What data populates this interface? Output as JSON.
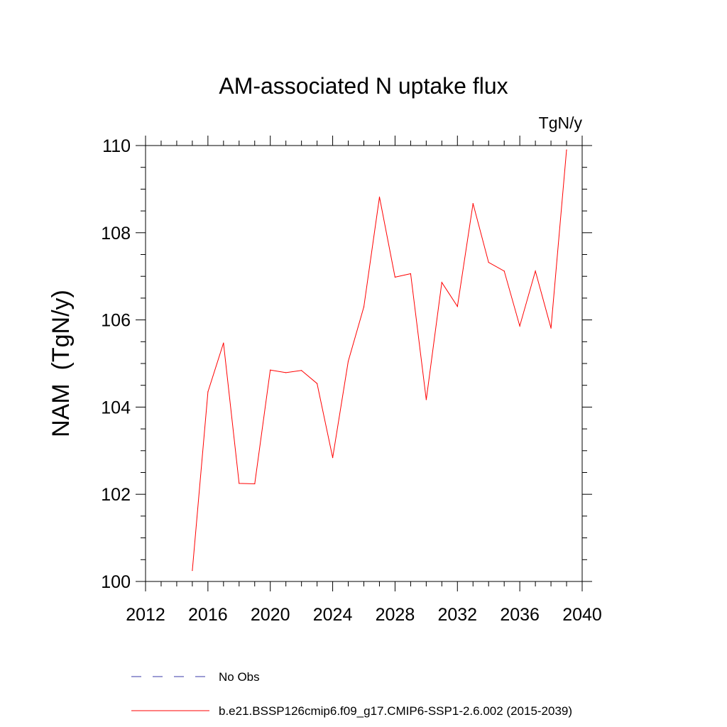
{
  "chart_data": {
    "type": "line",
    "title": "AM-associated N uptake flux",
    "units": "TgN/y",
    "ylabel": "NAM  (TgN/y)",
    "xlabel": "",
    "xlim": [
      2012,
      2040
    ],
    "ylim": [
      100,
      110
    ],
    "x_ticks": [
      2012,
      2016,
      2020,
      2024,
      2028,
      2032,
      2036,
      2040
    ],
    "y_ticks": [
      100,
      102,
      104,
      106,
      108,
      110
    ],
    "grid": false,
    "series": [
      {
        "name": "b.e21.BSSP126cmip6.f09_g17.CMIP6-SSP1-2.6.002 (2015-2039)",
        "color": "#ff0000",
        "x": [
          2015,
          2016,
          2017,
          2018,
          2019,
          2020,
          2021,
          2022,
          2023,
          2024,
          2025,
          2026,
          2027,
          2028,
          2029,
          2030,
          2031,
          2032,
          2033,
          2034,
          2035,
          2036,
          2037,
          2038,
          2039
        ],
        "y": [
          100.25,
          104.35,
          105.47,
          102.25,
          102.24,
          104.85,
          104.79,
          104.84,
          104.54,
          102.84,
          105.05,
          106.3,
          108.82,
          106.98,
          107.06,
          104.17,
          106.86,
          106.31,
          108.67,
          107.32,
          107.12,
          105.86,
          107.12,
          105.81,
          109.9
        ]
      }
    ],
    "legend": [
      {
        "label": "No Obs",
        "style": "dashed",
        "color": "#3a3aaa"
      },
      {
        "label": "b.e21.BSSP126cmip6.f09_g17.CMIP6-SSP1-2.6.002 (2015-2039)",
        "style": "solid",
        "color": "#ff0000"
      }
    ],
    "legend_position": "bottom"
  }
}
